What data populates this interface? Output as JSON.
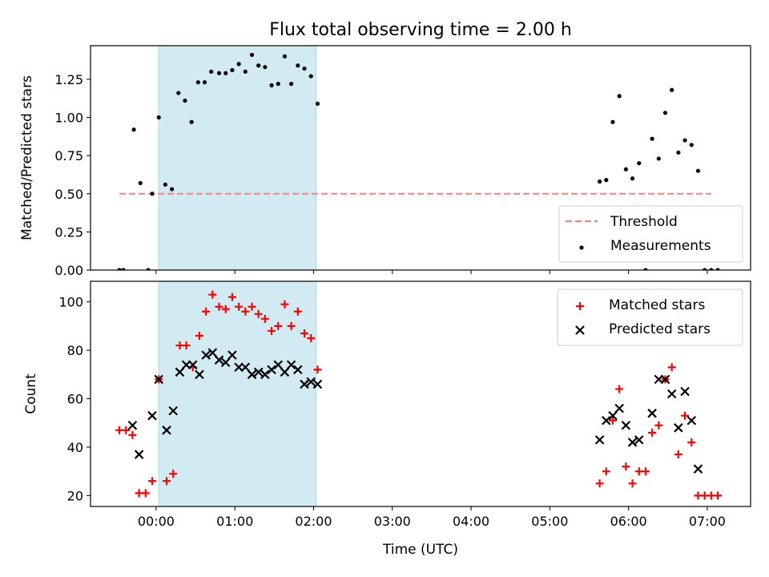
{
  "chart_data": [
    {
      "type": "scatter",
      "title": "Flux total observing time = 2.00 h",
      "ylabel": "Matched/Predicted stars",
      "xlabel": "",
      "xlim": [
        "-00:50",
        "07:33"
      ],
      "ylim": [
        0,
        1.47
      ],
      "yticks": [
        "0.00",
        "0.25",
        "0.50",
        "0.75",
        "1.00",
        "1.25"
      ],
      "grid": false,
      "legend_position": "lower-right",
      "shaded_interval": [
        "00:02",
        "02:02"
      ],
      "shaded_color": "#add8e6",
      "threshold": {
        "name": "Threshold",
        "value": 0.5,
        "x_range": [
          "-00:28",
          "07:03"
        ],
        "color": "#ff8080",
        "style": "dashed"
      },
      "series": [
        {
          "name": "Measurements",
          "color": "#000000",
          "marker": "dot",
          "points": [
            [
              "-00:28",
              0.0
            ],
            [
              "-00:25",
              0.0
            ],
            [
              "-00:17",
              0.92
            ],
            [
              "-00:12",
              0.57
            ],
            [
              "-00:06",
              0.0
            ],
            [
              "-00:03",
              0.5
            ],
            [
              "00:02",
              1.0
            ],
            [
              "00:07",
              0.56
            ],
            [
              "00:12",
              0.53
            ],
            [
              "00:17",
              1.16
            ],
            [
              "00:22",
              1.11
            ],
            [
              "00:27",
              0.97
            ],
            [
              "00:32",
              1.23
            ],
            [
              "00:37",
              1.23
            ],
            [
              "00:42",
              1.3
            ],
            [
              "00:48",
              1.29
            ],
            [
              "00:53",
              1.29
            ],
            [
              "00:58",
              1.31
            ],
            [
              "01:03",
              1.35
            ],
            [
              "01:08",
              1.3
            ],
            [
              "01:13",
              1.41
            ],
            [
              "01:18",
              1.34
            ],
            [
              "01:23",
              1.33
            ],
            [
              "01:28",
              1.21
            ],
            [
              "01:33",
              1.22
            ],
            [
              "01:38",
              1.4
            ],
            [
              "01:43",
              1.22
            ],
            [
              "01:48",
              1.34
            ],
            [
              "01:53",
              1.32
            ],
            [
              "01:58",
              1.27
            ],
            [
              "02:03",
              1.09
            ],
            [
              "05:38",
              0.58
            ],
            [
              "05:43",
              0.59
            ],
            [
              "05:48",
              0.97
            ],
            [
              "05:53",
              1.14
            ],
            [
              "05:58",
              0.66
            ],
            [
              "06:03",
              0.6
            ],
            [
              "06:08",
              0.7
            ],
            [
              "06:13",
              0.0
            ],
            [
              "06:18",
              0.86
            ],
            [
              "06:23",
              0.73
            ],
            [
              "06:28",
              1.03
            ],
            [
              "06:33",
              1.18
            ],
            [
              "06:38",
              0.77
            ],
            [
              "06:43",
              0.85
            ],
            [
              "06:48",
              0.82
            ],
            [
              "06:53",
              0.65
            ],
            [
              "06:58",
              0.0
            ],
            [
              "07:03",
              0.0
            ],
            [
              "07:08",
              0.0
            ]
          ]
        }
      ]
    },
    {
      "type": "scatter",
      "title": "",
      "ylabel": "Count",
      "xlabel": "Time (UTC)",
      "xlim": [
        "-00:50",
        "07:33"
      ],
      "ylim": [
        15.5,
        108.5
      ],
      "xticks": [
        "00:00",
        "01:00",
        "02:00",
        "03:00",
        "04:00",
        "05:00",
        "06:00",
        "07:00"
      ],
      "yticks": [
        "20",
        "40",
        "60",
        "80",
        "100"
      ],
      "grid": false,
      "legend_position": "top-right",
      "shaded_interval": [
        "00:02",
        "02:02"
      ],
      "shaded_color": "#add8e6",
      "series": [
        {
          "name": "Matched stars",
          "color": "#ff0000",
          "marker": "plus",
          "points": [
            [
              "-00:28",
              47
            ],
            [
              "-00:23",
              47
            ],
            [
              "-00:18",
              45
            ],
            [
              "-00:13",
              21
            ],
            [
              "-00:08",
              21
            ],
            [
              "-00:03",
              26
            ],
            [
              "00:02",
              68
            ],
            [
              "00:08",
              26
            ],
            [
              "00:13",
              29
            ],
            [
              "00:18",
              82
            ],
            [
              "00:23",
              82
            ],
            [
              "00:28",
              73
            ],
            [
              "00:33",
              86
            ],
            [
              "00:38",
              96
            ],
            [
              "00:43",
              103
            ],
            [
              "00:48",
              98
            ],
            [
              "00:53",
              97
            ],
            [
              "00:58",
              102
            ],
            [
              "01:03",
              98
            ],
            [
              "01:08",
              96
            ],
            [
              "01:13",
              98
            ],
            [
              "01:18",
              95
            ],
            [
              "01:23",
              93
            ],
            [
              "01:28",
              88
            ],
            [
              "01:33",
              90
            ],
            [
              "01:38",
              99
            ],
            [
              "01:43",
              90
            ],
            [
              "01:48",
              96
            ],
            [
              "01:53",
              87
            ],
            [
              "01:58",
              85
            ],
            [
              "02:03",
              72
            ],
            [
              "05:38",
              25
            ],
            [
              "05:43",
              30
            ],
            [
              "05:48",
              51
            ],
            [
              "05:53",
              64
            ],
            [
              "05:58",
              32
            ],
            [
              "06:03",
              25
            ],
            [
              "06:08",
              30
            ],
            [
              "06:13",
              30
            ],
            [
              "06:18",
              46
            ],
            [
              "06:23",
              49
            ],
            [
              "06:28",
              68
            ],
            [
              "06:33",
              73
            ],
            [
              "06:38",
              37
            ],
            [
              "06:43",
              53
            ],
            [
              "06:48",
              42
            ],
            [
              "06:53",
              20
            ],
            [
              "06:58",
              20
            ],
            [
              "07:03",
              20
            ],
            [
              "07:08",
              20
            ]
          ]
        },
        {
          "name": "Predicted stars",
          "color": "#000000",
          "marker": "x",
          "points": [
            [
              "-00:18",
              49
            ],
            [
              "-00:13",
              37
            ],
            [
              "-00:03",
              53
            ],
            [
              "00:02",
              68
            ],
            [
              "00:08",
              47
            ],
            [
              "00:13",
              55
            ],
            [
              "00:18",
              71
            ],
            [
              "00:23",
              74
            ],
            [
              "00:28",
              74
            ],
            [
              "00:33",
              70
            ],
            [
              "00:38",
              78
            ],
            [
              "00:43",
              79
            ],
            [
              "00:48",
              76
            ],
            [
              "00:53",
              75
            ],
            [
              "00:58",
              78
            ],
            [
              "01:03",
              73
            ],
            [
              "01:08",
              73
            ],
            [
              "01:13",
              70
            ],
            [
              "01:18",
              71
            ],
            [
              "01:23",
              70
            ],
            [
              "01:28",
              72
            ],
            [
              "01:33",
              74
            ],
            [
              "01:38",
              71
            ],
            [
              "01:43",
              74
            ],
            [
              "01:48",
              72
            ],
            [
              "01:53",
              66
            ],
            [
              "01:58",
              67
            ],
            [
              "02:03",
              66
            ],
            [
              "05:38",
              43
            ],
            [
              "05:43",
              51
            ],
            [
              "05:48",
              53
            ],
            [
              "05:53",
              56
            ],
            [
              "05:58",
              49
            ],
            [
              "06:03",
              42
            ],
            [
              "06:08",
              43
            ],
            [
              "06:18",
              54
            ],
            [
              "06:23",
              68
            ],
            [
              "06:28",
              68
            ],
            [
              "06:33",
              62
            ],
            [
              "06:38",
              48
            ],
            [
              "06:43",
              63
            ],
            [
              "06:48",
              51
            ],
            [
              "06:53",
              31
            ]
          ]
        }
      ]
    }
  ]
}
